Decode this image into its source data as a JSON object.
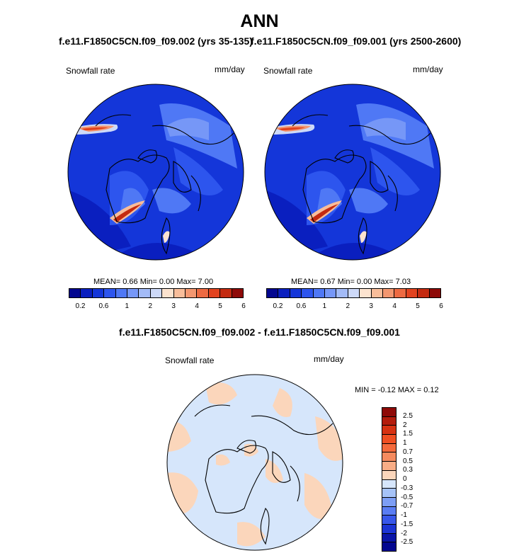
{
  "header": {
    "title": "ANN",
    "case_left": "f.e11.F1850C5CN.f09_f09.002 (yrs 35-135)",
    "case_right": "f.e11.F1850C5CN.f09_f09.001 (yrs 2500-2600)"
  },
  "panel_left": {
    "variable": "Snowfall rate",
    "units": "mm/day",
    "stats": "MEAN=   0.66  Min=   0.00  Max=   7.00"
  },
  "panel_right": {
    "variable": "Snowfall rate",
    "units": "mm/day",
    "stats": "MEAN=   0.67  Min=   0.00  Max=   7.03"
  },
  "colorbar_abs": {
    "colors": [
      "#03078f",
      "#0a1fbf",
      "#1436d9",
      "#2d55ee",
      "#4f78f5",
      "#7697f7",
      "#a3bbf7",
      "#cdd9f8",
      "#fce3cf",
      "#f8bd9a",
      "#f39770",
      "#ed6a42",
      "#e2431f",
      "#c42a10",
      "#8e0a08"
    ],
    "tick_labels": [
      "0.2",
      "0.6",
      "1",
      "2",
      "3",
      "4",
      "5",
      "6"
    ]
  },
  "diff_panel": {
    "title": "f.e11.F1850C5CN.f09_f09.002 - f.e11.F1850C5CN.f09_f09.001",
    "variable": "Snowfall rate",
    "units": "mm/day",
    "minmax": "MIN =  -0.12 MAX =   0.12"
  },
  "colorbar_diff": {
    "colors": [
      "#8e0a08",
      "#b31c0c",
      "#d63212",
      "#ef4f22",
      "#f46a3c",
      "#f58b5f",
      "#f8ad86",
      "#fbd6bb",
      "#d6e6fb",
      "#a6c3f8",
      "#7d9ef5",
      "#5a7df3",
      "#3857ea",
      "#1c34d4",
      "#0a15a8",
      "#03078f"
    ],
    "tick_labels": [
      "2.5",
      "2",
      "1.5",
      "1",
      "0.7",
      "0.5",
      "0.3",
      "0",
      "-0.3",
      "-0.5",
      "-0.7",
      "-1",
      "-1.5",
      "-2",
      "-2.5"
    ]
  }
}
